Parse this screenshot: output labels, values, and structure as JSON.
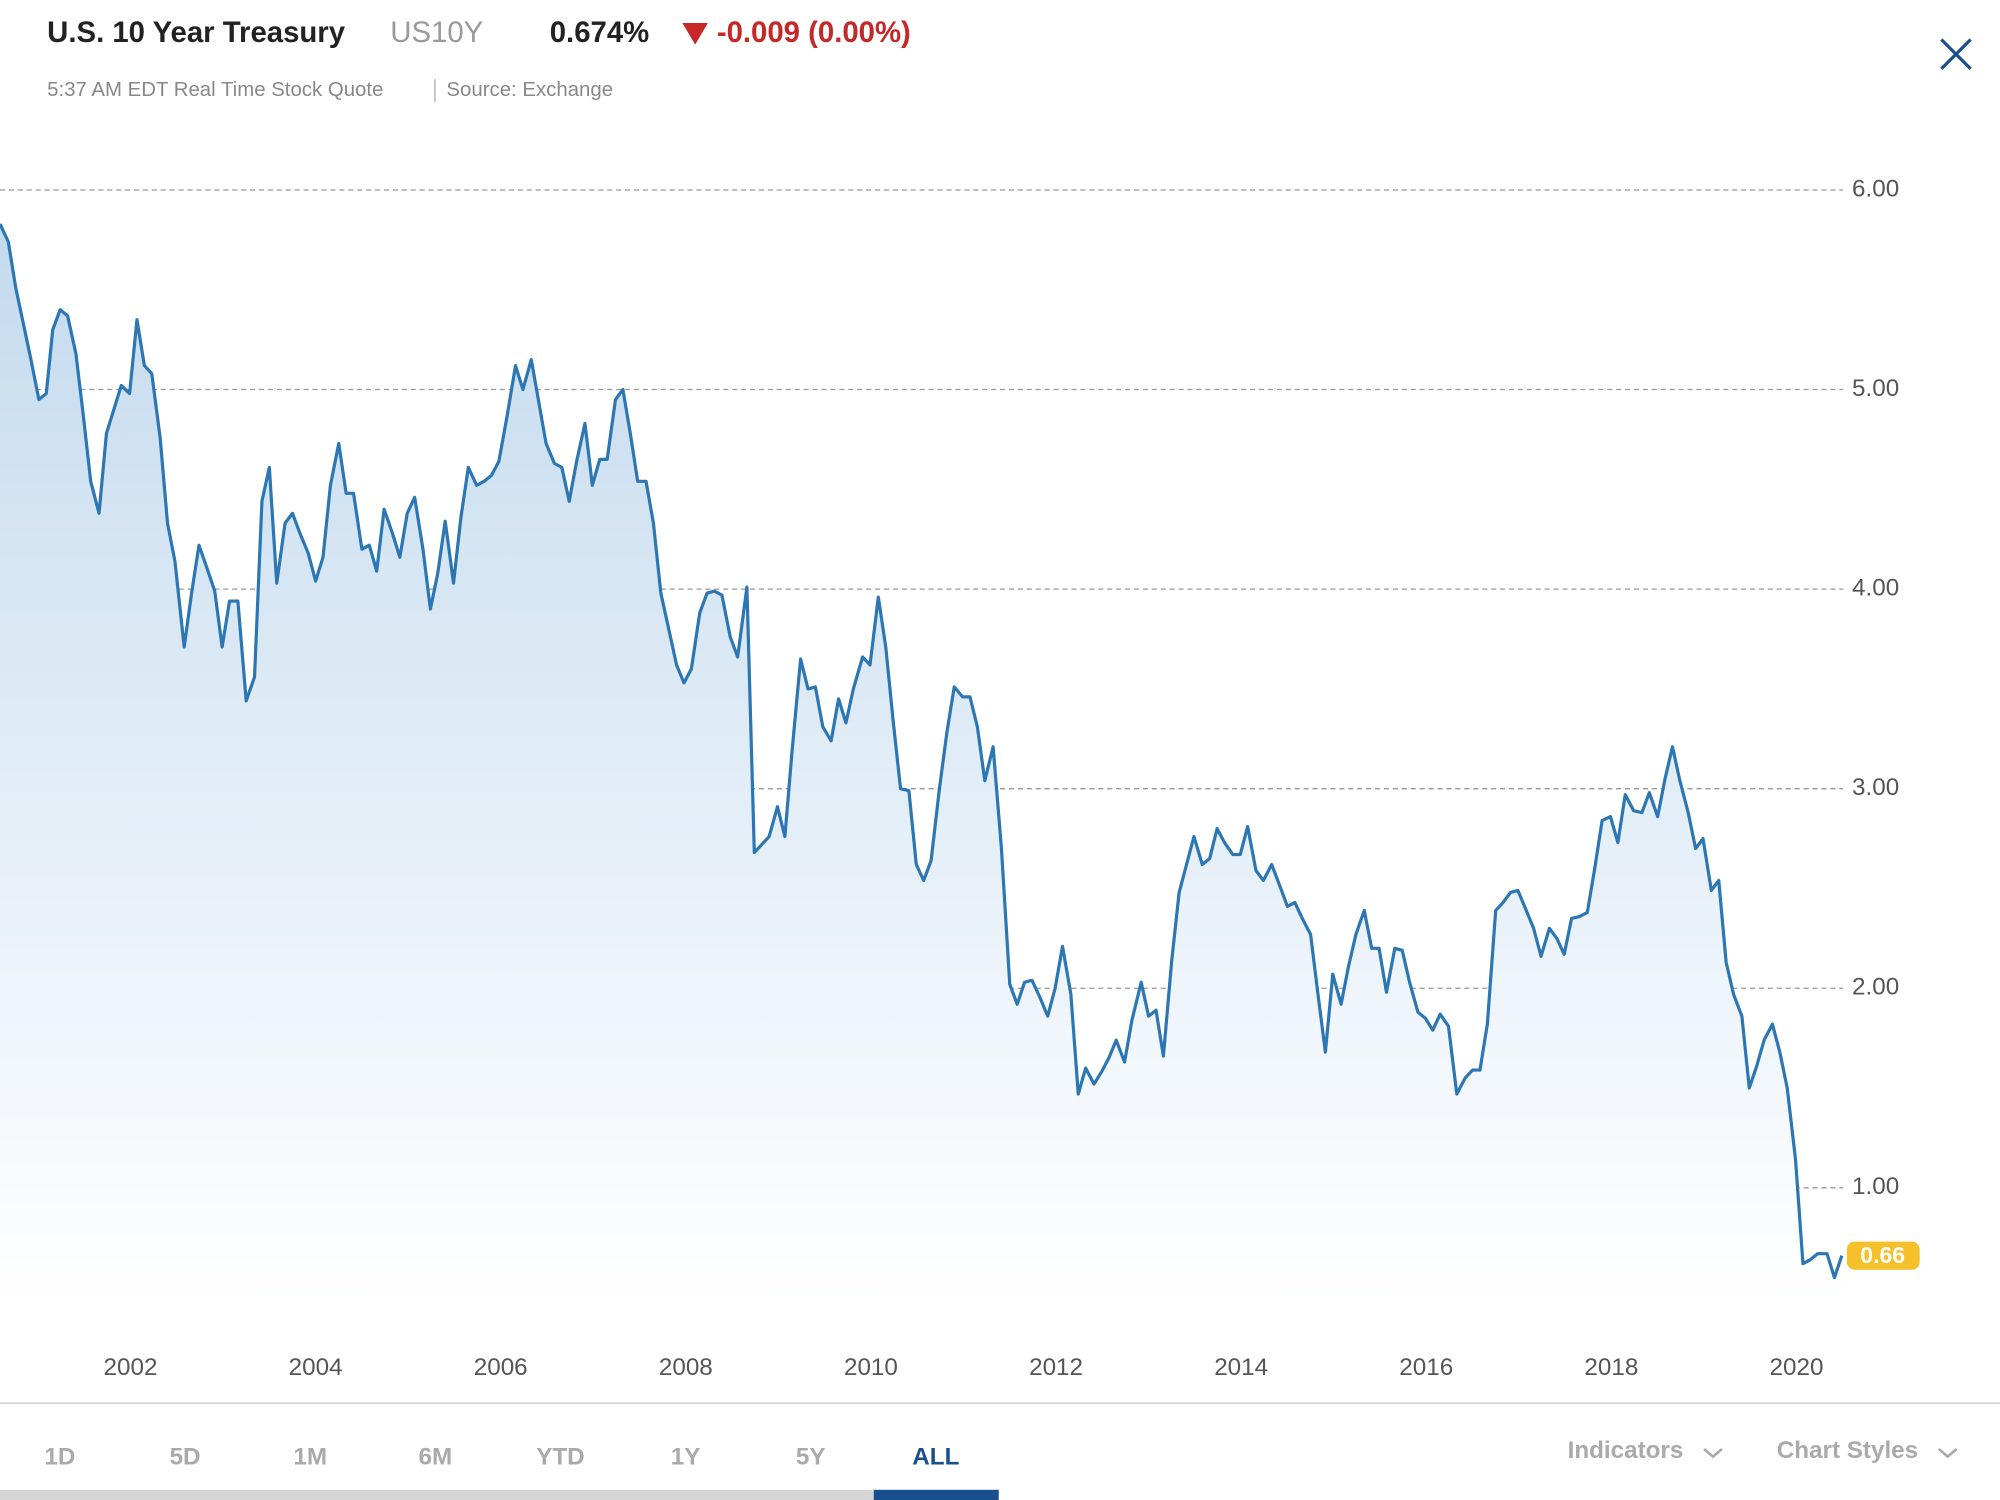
{
  "header": {
    "title": "U.S. 10 Year Treasury",
    "symbol": "US10Y",
    "price": "0.674%",
    "change": "-0.009 (0.00%)",
    "quote_time": "5:37 AM EDT Real Time Stock Quote",
    "source": "Source: Exchange"
  },
  "chart_data": {
    "type": "line",
    "color": "#2b76b3",
    "grid": true,
    "x": [
      2000.59,
      2000.68,
      2000.76,
      2000.92,
      2001.01,
      2001.09,
      2001.16,
      2001.24,
      2001.32,
      2001.41,
      2001.49,
      2001.57,
      2001.66,
      2001.74,
      2001.9,
      2001.99,
      2002.07,
      2002.15,
      2002.23,
      2002.32,
      2002.4,
      2002.48,
      2002.58,
      2002.66,
      2002.74,
      2002.83,
      2002.91,
      2002.99,
      2003.07,
      2003.16,
      2003.25,
      2003.34,
      2003.42,
      2003.5,
      2003.58,
      2003.67,
      2003.75,
      2003.83,
      2003.92,
      2004.0,
      2004.08,
      2004.16,
      2004.25,
      2004.33,
      2004.41,
      2004.5,
      2004.58,
      2004.66,
      2004.74,
      2004.83,
      2004.91,
      2004.99,
      2005.07,
      2005.16,
      2005.24,
      2005.32,
      2005.4,
      2005.49,
      2005.57,
      2005.65,
      2005.74,
      2005.82,
      2005.9,
      2005.98,
      2006.07,
      2006.16,
      2006.24,
      2006.33,
      2006.41,
      2006.49,
      2006.58,
      2006.66,
      2006.74,
      2006.82,
      2006.91,
      2006.99,
      2007.07,
      2007.15,
      2007.24,
      2007.32,
      2007.4,
      2007.48,
      2007.57,
      2007.65,
      2007.73,
      2007.82,
      2007.9,
      2007.98,
      2008.06,
      2008.15,
      2008.23,
      2008.31,
      2008.39,
      2008.48,
      2008.56,
      2008.66,
      2008.74,
      2008.82,
      2008.9,
      2008.99,
      2009.07,
      2009.15,
      2009.24,
      2009.32,
      2009.4,
      2009.48,
      2009.57,
      2009.65,
      2009.73,
      2009.81,
      2009.91,
      2009.99,
      2010.08,
      2010.16,
      2010.24,
      2010.32,
      2010.41,
      2010.49,
      2010.57,
      2010.65,
      2010.74,
      2010.82,
      2010.9,
      2010.99,
      2011.07,
      2011.15,
      2011.23,
      2011.32,
      2011.41,
      2011.5,
      2011.58,
      2011.66,
      2011.74,
      2011.83,
      2011.91,
      2011.99,
      2012.07,
      2012.16,
      2012.24,
      2012.32,
      2012.41,
      2012.49,
      2012.57,
      2012.65,
      2012.74,
      2012.82,
      2012.92,
      2013.0,
      2013.08,
      2013.16,
      2013.25,
      2013.33,
      2013.41,
      2013.49,
      2013.58,
      2013.66,
      2013.74,
      2013.82,
      2013.91,
      2013.99,
      2014.07,
      2014.16,
      2014.24,
      2014.33,
      2014.42,
      2014.5,
      2014.58,
      2014.66,
      2014.75,
      2014.83,
      2014.91,
      2014.99,
      2015.08,
      2015.16,
      2015.24,
      2015.33,
      2015.41,
      2015.49,
      2015.57,
      2015.66,
      2015.74,
      2015.82,
      2015.91,
      2015.99,
      2016.07,
      2016.15,
      2016.24,
      2016.33,
      2016.42,
      2016.5,
      2016.58,
      2016.66,
      2016.75,
      2016.83,
      2016.91,
      2016.99,
      2017.08,
      2017.16,
      2017.24,
      2017.33,
      2017.41,
      2017.49,
      2017.57,
      2017.66,
      2017.74,
      2017.82,
      2017.9,
      2017.99,
      2018.07,
      2018.15,
      2018.24,
      2018.33,
      2018.41,
      2018.5,
      2018.58,
      2018.66,
      2018.74,
      2018.83,
      2018.91,
      2018.99,
      2019.08,
      2019.16,
      2019.24,
      2019.32,
      2019.41,
      2019.49,
      2019.57,
      2019.65,
      2019.74,
      2019.82,
      2019.9,
      2019.99,
      2020.07,
      2020.15,
      2020.23,
      2020.33,
      2020.41,
      2020.49
    ],
    "values": [
      5.83,
      5.74,
      5.51,
      5.16,
      4.95,
      4.98,
      5.3,
      5.4,
      5.37,
      5.18,
      4.87,
      4.54,
      4.38,
      4.78,
      5.02,
      4.98,
      5.35,
      5.12,
      5.08,
      4.76,
      4.33,
      4.14,
      3.71,
      3.98,
      4.22,
      4.1,
      3.99,
      3.71,
      3.94,
      3.94,
      3.44,
      3.56,
      4.44,
      4.61,
      4.03,
      4.33,
      4.38,
      4.28,
      4.18,
      4.04,
      4.16,
      4.52,
      4.73,
      4.48,
      4.48,
      4.2,
      4.22,
      4.09,
      4.4,
      4.28,
      4.16,
      4.38,
      4.46,
      4.2,
      3.9,
      4.08,
      4.34,
      4.03,
      4.36,
      4.61,
      4.52,
      4.54,
      4.57,
      4.64,
      4.87,
      5.12,
      5.0,
      5.15,
      4.94,
      4.73,
      4.63,
      4.61,
      4.44,
      4.64,
      4.83,
      4.52,
      4.65,
      4.65,
      4.95,
      5.0,
      4.78,
      4.54,
      4.54,
      4.33,
      3.98,
      3.79,
      3.62,
      3.53,
      3.6,
      3.88,
      3.98,
      3.99,
      3.97,
      3.76,
      3.66,
      4.01,
      2.68,
      2.72,
      2.76,
      2.91,
      2.76,
      3.2,
      3.65,
      3.5,
      3.51,
      3.31,
      3.24,
      3.45,
      3.33,
      3.5,
      3.66,
      3.62,
      3.96,
      3.71,
      3.34,
      3.0,
      2.99,
      2.62,
      2.54,
      2.64,
      3.0,
      3.28,
      3.51,
      3.46,
      3.46,
      3.31,
      3.04,
      3.21,
      2.7,
      2.02,
      1.92,
      2.03,
      2.04,
      1.95,
      1.86,
      2.0,
      2.21,
      1.97,
      1.47,
      1.6,
      1.52,
      1.58,
      1.65,
      1.74,
      1.63,
      1.84,
      2.03,
      1.86,
      1.89,
      1.66,
      2.14,
      2.48,
      2.62,
      2.76,
      2.62,
      2.65,
      2.8,
      2.73,
      2.67,
      2.67,
      2.81,
      2.59,
      2.54,
      2.62,
      2.51,
      2.41,
      2.43,
      2.35,
      2.27,
      1.97,
      1.68,
      2.07,
      1.92,
      2.11,
      2.27,
      2.39,
      2.2,
      2.2,
      1.98,
      2.2,
      2.19,
      2.03,
      1.88,
      1.85,
      1.79,
      1.87,
      1.81,
      1.47,
      1.55,
      1.59,
      1.59,
      1.82,
      2.39,
      2.43,
      2.48,
      2.49,
      2.39,
      2.3,
      2.16,
      2.3,
      2.25,
      2.17,
      2.35,
      2.36,
      2.38,
      2.6,
      2.84,
      2.86,
      2.73,
      2.97,
      2.89,
      2.88,
      2.98,
      2.86,
      3.05,
      3.21,
      3.04,
      2.88,
      2.7,
      2.75,
      2.49,
      2.54,
      2.13,
      1.97,
      1.86,
      1.5,
      1.61,
      1.74,
      1.82,
      1.68,
      1.5,
      1.14,
      0.62,
      0.64,
      0.67,
      0.67,
      0.55,
      0.66
    ],
    "last_value": 0.66,
    "xlim": [
      2000.59,
      2020.49
    ],
    "xticks": [
      2002,
      2004,
      2006,
      2008,
      2010,
      2012,
      2014,
      2016,
      2018,
      2020
    ],
    "ylim": [
      0.42,
      6.3
    ],
    "yticks": [
      {
        "value": 1,
        "label": "1.00"
      },
      {
        "value": 2,
        "label": "2.00"
      },
      {
        "value": 3,
        "label": "3.00"
      },
      {
        "value": 4,
        "label": "4.00"
      },
      {
        "value": 5,
        "label": "5.00"
      },
      {
        "value": 6,
        "label": "6.00"
      }
    ]
  },
  "footer": {
    "ranges": [
      "1D",
      "5D",
      "1M",
      "6M",
      "YTD",
      "1Y",
      "5Y",
      "ALL"
    ],
    "indicators": "Indicators",
    "chart_styles": "Chart Styles"
  }
}
